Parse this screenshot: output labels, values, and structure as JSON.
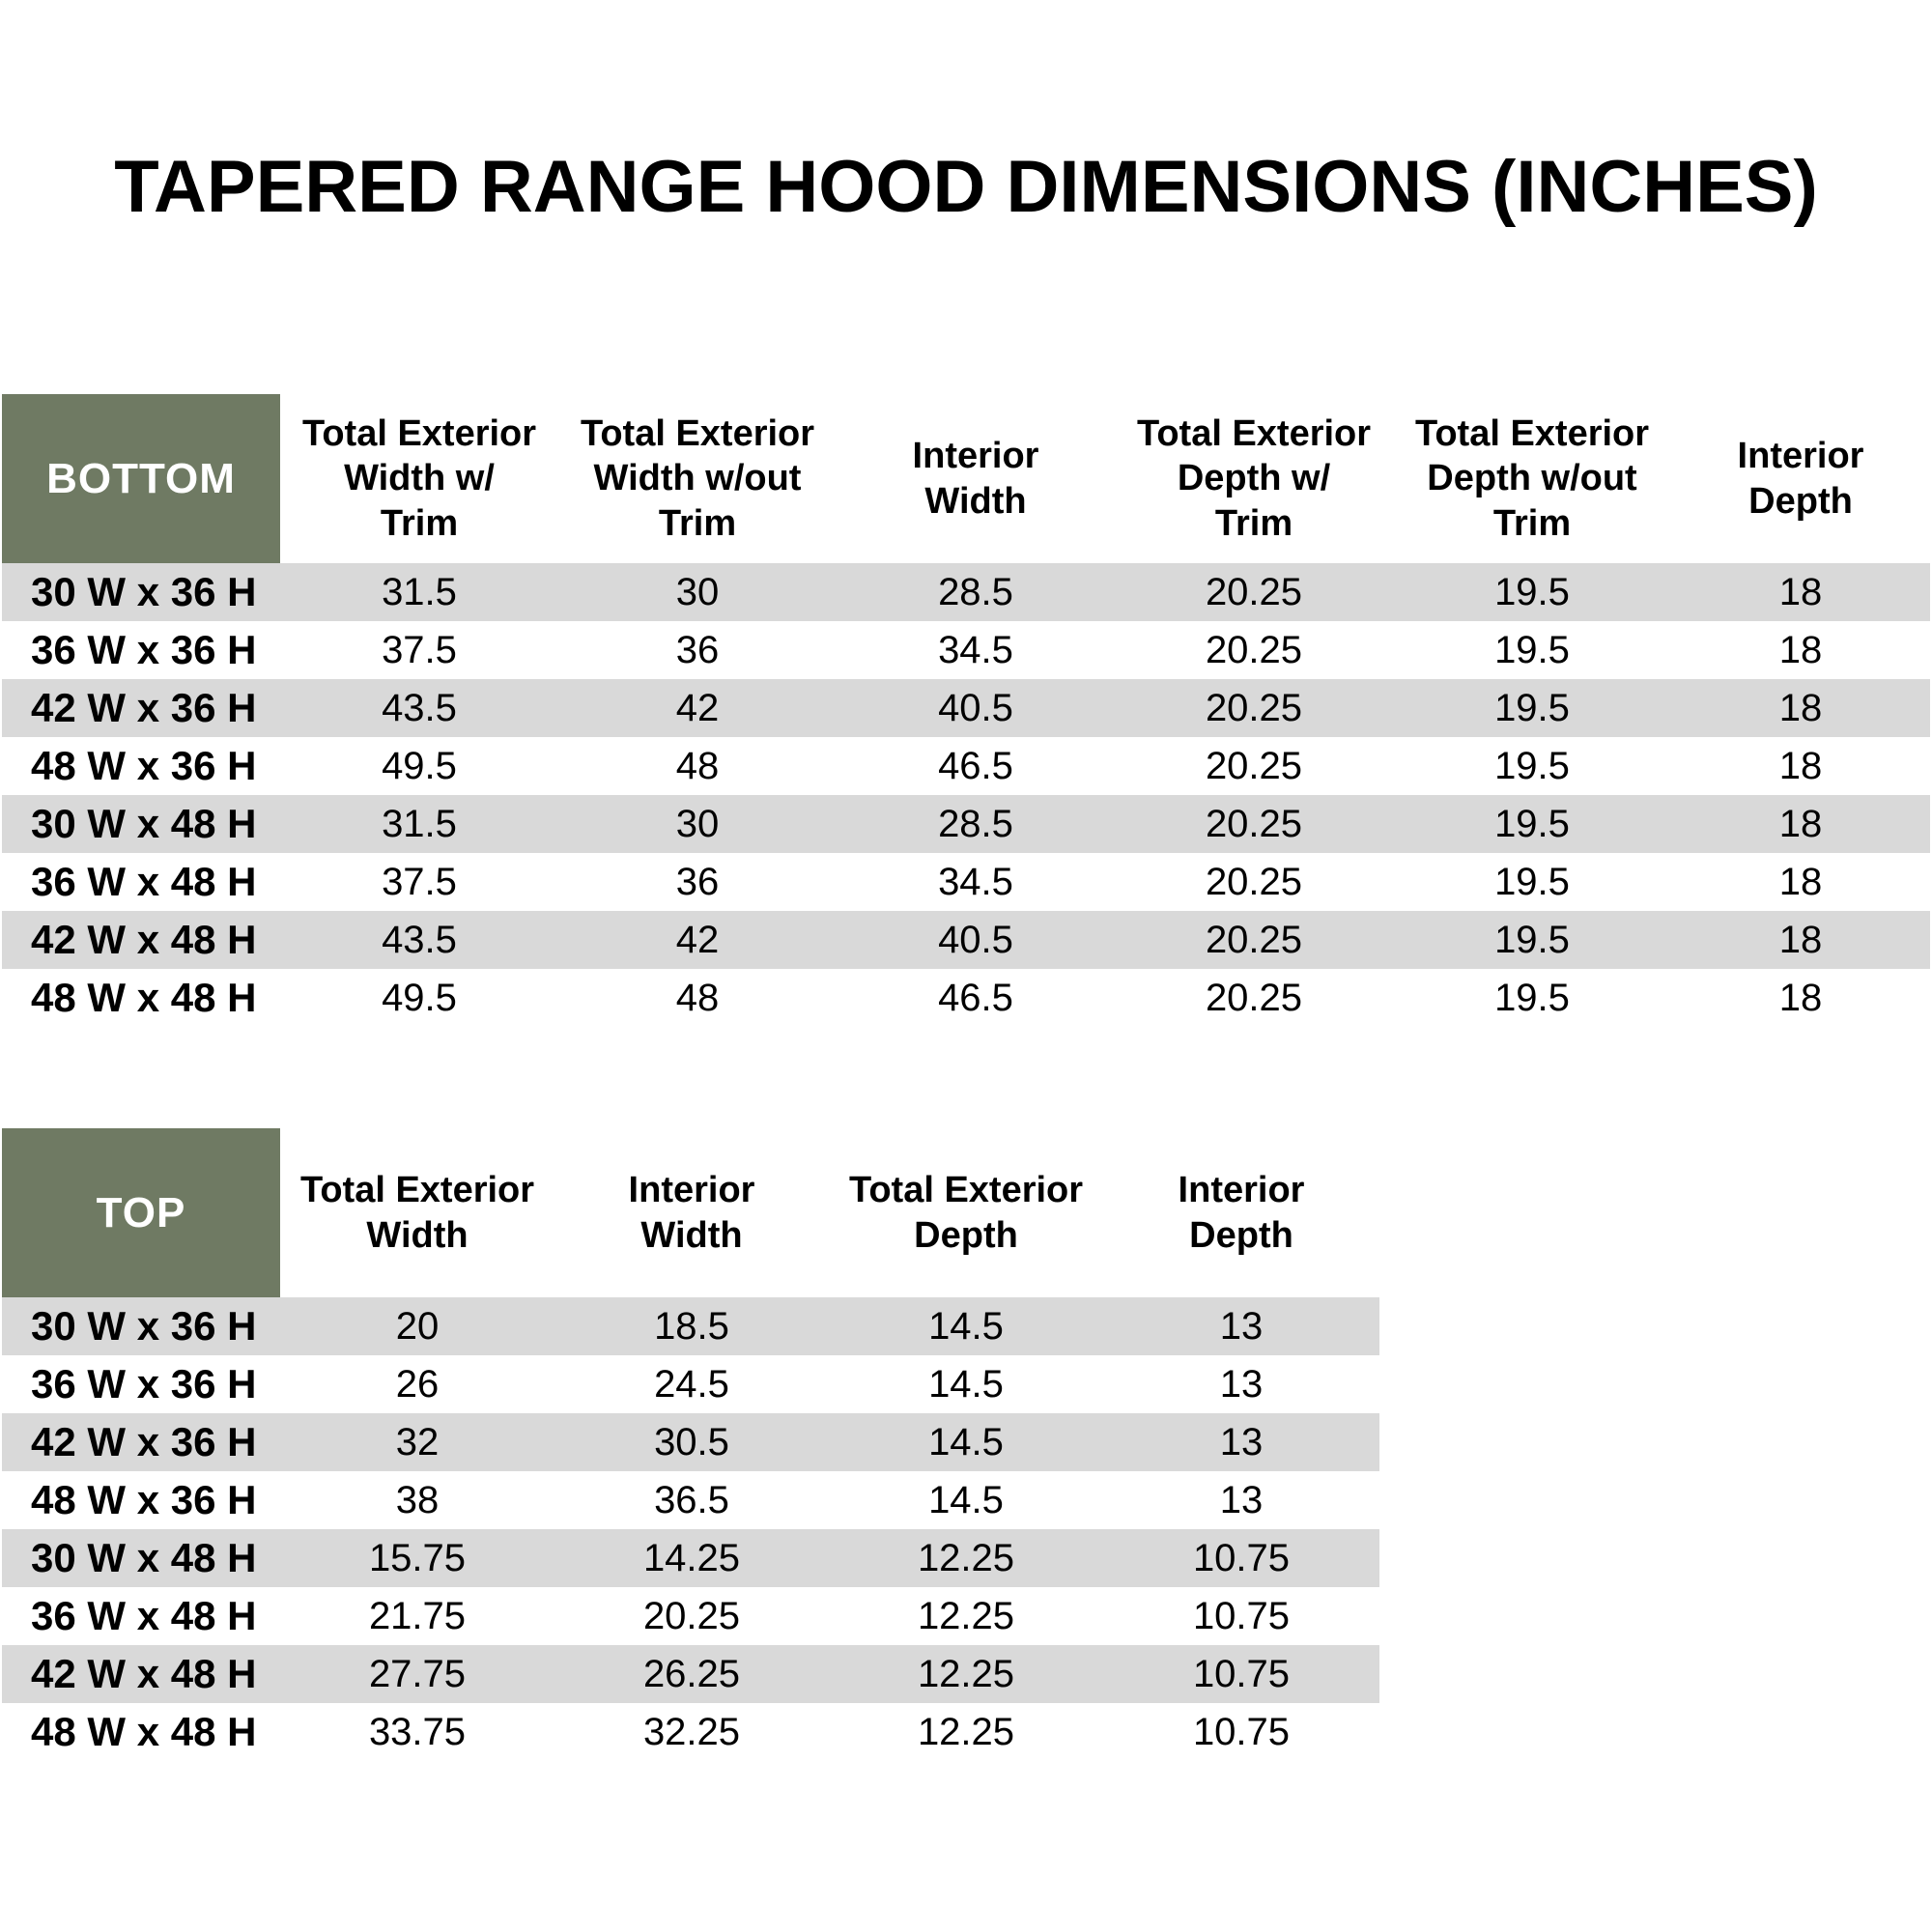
{
  "title": "TAPERED RANGE HOOD DIMENSIONS (INCHES)",
  "colors": {
    "header_fill": "#6F7A63",
    "stripe_fill": "#D9D9D9",
    "header_text": "#FFFFFF",
    "body_text": "#000000"
  },
  "tables": {
    "bottom": {
      "corner_label": "BOTTOM",
      "columns": [
        "Total Exterior\nWidth w/\nTrim",
        "Total Exterior\nWidth w/out\nTrim",
        "Interior\nWidth",
        "Total Exterior\nDepth w/\nTrim",
        "Total Exterior\nDepth w/out\nTrim",
        "Interior\nDepth"
      ],
      "rows": [
        {
          "label": "30 W x 36 H",
          "values": [
            "31.5",
            "30",
            "28.5",
            "20.25",
            "19.5",
            "18"
          ]
        },
        {
          "label": "36 W x 36 H",
          "values": [
            "37.5",
            "36",
            "34.5",
            "20.25",
            "19.5",
            "18"
          ]
        },
        {
          "label": "42 W x 36 H",
          "values": [
            "43.5",
            "42",
            "40.5",
            "20.25",
            "19.5",
            "18"
          ]
        },
        {
          "label": "48 W x 36 H",
          "values": [
            "49.5",
            "48",
            "46.5",
            "20.25",
            "19.5",
            "18"
          ]
        },
        {
          "label": "30 W x 48 H",
          "values": [
            "31.5",
            "30",
            "28.5",
            "20.25",
            "19.5",
            "18"
          ]
        },
        {
          "label": "36 W x 48 H",
          "values": [
            "37.5",
            "36",
            "34.5",
            "20.25",
            "19.5",
            "18"
          ]
        },
        {
          "label": "42 W x 48 H",
          "values": [
            "43.5",
            "42",
            "40.5",
            "20.25",
            "19.5",
            "18"
          ]
        },
        {
          "label": "48 W x 48 H",
          "values": [
            "49.5",
            "48",
            "46.5",
            "20.25",
            "19.5",
            "18"
          ]
        }
      ]
    },
    "top": {
      "corner_label": "TOP",
      "columns": [
        "Total Exterior\nWidth",
        "Interior\nWidth",
        "Total Exterior\nDepth",
        "Interior\nDepth"
      ],
      "rows": [
        {
          "label": "30 W x 36 H",
          "values": [
            "20",
            "18.5",
            "14.5",
            "13"
          ]
        },
        {
          "label": "36 W x 36 H",
          "values": [
            "26",
            "24.5",
            "14.5",
            "13"
          ]
        },
        {
          "label": "42 W x 36 H",
          "values": [
            "32",
            "30.5",
            "14.5",
            "13"
          ]
        },
        {
          "label": "48 W x 36 H",
          "values": [
            "38",
            "36.5",
            "14.5",
            "13"
          ]
        },
        {
          "label": "30 W x 48 H",
          "values": [
            "15.75",
            "14.25",
            "12.25",
            "10.75"
          ]
        },
        {
          "label": "36 W x 48 H",
          "values": [
            "21.75",
            "20.25",
            "12.25",
            "10.75"
          ]
        },
        {
          "label": "42 W x 48 H",
          "values": [
            "27.75",
            "26.25",
            "12.25",
            "10.75"
          ]
        },
        {
          "label": "48 W x 48 H",
          "values": [
            "33.75",
            "32.25",
            "12.25",
            "10.75"
          ]
        }
      ]
    }
  }
}
